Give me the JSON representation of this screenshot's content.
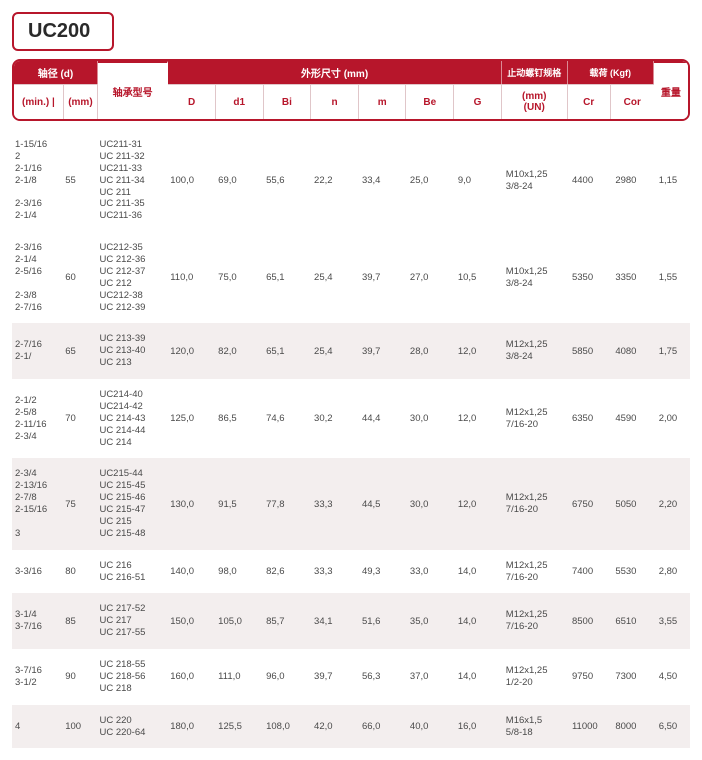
{
  "title": "UC200",
  "header": {
    "group_shaft": "轴径 (d)",
    "model": "轴承型号",
    "group_dim": "外形尺寸 (mm)",
    "thread": "止动螺钉规格",
    "load": "载荷 (Kgf)",
    "weight": "重量",
    "sub": {
      "min": "(min.)",
      "sep": "|",
      "mm": "(mm)",
      "D": "D",
      "d1": "d1",
      "Bi": "Bi",
      "n": "n",
      "m": "m",
      "Be": "Be",
      "G": "G",
      "thread_mm": "(mm)",
      "thread_un": "(UN)",
      "Cr": "Cr",
      "Cor": "Cor"
    }
  },
  "rows": [
    {
      "min": [
        "1-15/16",
        "2",
        "2-1/16",
        "2-1/8",
        "",
        "2-3/16",
        "2-1/4"
      ],
      "mm": "55",
      "models": [
        "UC211-31",
        "UC 211-32",
        "UC211-33",
        "UC 211-34",
        "UC 211",
        "UC 211-35",
        "UC211-36"
      ],
      "D": "100,0",
      "d1": "69,0",
      "Bi": "55,6",
      "n": "22,2",
      "m": "33,4",
      "Be": "25,0",
      "G": "9,0",
      "thread": [
        "M10x1,25",
        "3/8-24"
      ],
      "Cr": "4400",
      "Cor": "2980",
      "wt": "1,15"
    },
    {
      "min": [
        "2-3/16",
        "2-1/4",
        "2-5/16",
        "",
        "2-3/8",
        "2-7/16"
      ],
      "mm": "60",
      "models": [
        "UC212-35",
        "UC 212-36",
        "UC 212-37",
        "UC 212",
        "UC212-38",
        "UC 212-39"
      ],
      "D": "110,0",
      "d1": "75,0",
      "Bi": "65,1",
      "n": "25,4",
      "m": "39,7",
      "Be": "27,0",
      "G": "10,5",
      "thread": [
        "M10x1,25",
        "3/8-24"
      ],
      "Cr": "5350",
      "Cor": "3350",
      "wt": "1,55"
    },
    {
      "min": [
        "2-7/16",
        "2-1/"
      ],
      "mm": "65",
      "models": [
        "UC 213-39",
        "UC 213-40",
        "UC 213"
      ],
      "D": "120,0",
      "d1": "82,0",
      "Bi": "65,1",
      "n": "25,4",
      "m": "39,7",
      "Be": "28,0",
      "G": "12,0",
      "thread": [
        "M12x1,25",
        "3/8-24"
      ],
      "Cr": "5850",
      "Cor": "4080",
      "wt": "1,75",
      "shade": true
    },
    {
      "min": [
        "2-1/2",
        "2-5/8",
        "2-11/16",
        "2-3/4"
      ],
      "mm": "70",
      "models": [
        "UC214-40",
        "UC214-42",
        "UC 214-43",
        "UC 214-44",
        "UC 214"
      ],
      "D": "125,0",
      "d1": "86,5",
      "Bi": "74,6",
      "n": "30,2",
      "m": "44,4",
      "Be": "30,0",
      "G": "12,0",
      "thread": [
        "M12x1,25",
        "7/16-20"
      ],
      "Cr": "6350",
      "Cor": "4590",
      "wt": "2,00"
    },
    {
      "min": [
        "2-3/4",
        "2-13/16",
        "2-7/8",
        "2-15/16",
        "",
        "3"
      ],
      "mm": "75",
      "models": [
        "UC215-44",
        "UC 215-45",
        "UC 215-46",
        "UC 215-47",
        "UC 215",
        "UC 215-48"
      ],
      "D": "130,0",
      "d1": "91,5",
      "Bi": "77,8",
      "n": "33,3",
      "m": "44,5",
      "Be": "30,0",
      "G": "12,0",
      "thread": [
        "M12x1,25",
        "7/16-20"
      ],
      "Cr": "6750",
      "Cor": "5050",
      "wt": "2,20",
      "shade": true
    },
    {
      "min": [
        "3-3/16"
      ],
      "mm": "80",
      "models": [
        "UC 216",
        "UC 216-51"
      ],
      "D": "140,0",
      "d1": "98,0",
      "Bi": "82,6",
      "n": "33,3",
      "m": "49,3",
      "Be": "33,0",
      "G": "14,0",
      "thread": [
        "M12x1,25",
        "7/16-20"
      ],
      "Cr": "7400",
      "Cor": "5530",
      "wt": "2,80"
    },
    {
      "min": [
        "3-1/4",
        "3-7/16"
      ],
      "mm": "85",
      "models": [
        "UC 217-52",
        "UC 217",
        "UC 217-55"
      ],
      "D": "150,0",
      "d1": "105,0",
      "Bi": "85,7",
      "n": "34,1",
      "m": "51,6",
      "Be": "35,0",
      "G": "14,0",
      "thread": [
        "M12x1,25",
        "7/16-20"
      ],
      "Cr": "8500",
      "Cor": "6510",
      "wt": "3,55",
      "shade": true
    },
    {
      "min": [
        "3-7/16",
        "3-1/2"
      ],
      "mm": "90",
      "models": [
        "UC 218-55",
        "UC 218-56",
        "UC 218"
      ],
      "D": "160,0",
      "d1": "111,0",
      "Bi": "96,0",
      "n": "39,7",
      "m": "56,3",
      "Be": "37,0",
      "G": "14,0",
      "thread": [
        "M12x1,25",
        "1/2-20"
      ],
      "Cr": "9750",
      "Cor": "7300",
      "wt": "4,50"
    },
    {
      "min": [
        "4"
      ],
      "mm": "100",
      "models": [
        "UC 220",
        "UC 220-64"
      ],
      "D": "180,0",
      "d1": "125,5",
      "Bi": "108,0",
      "n": "42,0",
      "m": "66,0",
      "Be": "40,0",
      "G": "16,0",
      "thread": [
        "M16x1,5",
        "5/8-18"
      ],
      "Cr": "11000",
      "Cor": "8000",
      "wt": "6,50",
      "shade": true
    }
  ]
}
